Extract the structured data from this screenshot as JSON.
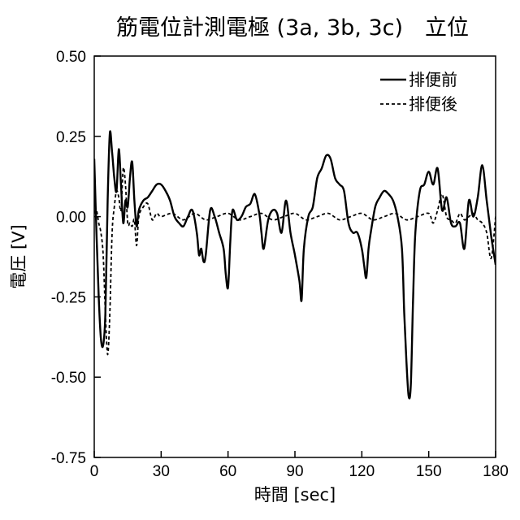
{
  "chart_data": {
    "type": "line",
    "title": "筋電位計測電極 (3a, 3b, 3c)　立位",
    "xlabel": "時間 [sec]",
    "ylabel": "電圧 [V]",
    "xlim": [
      0,
      180
    ],
    "ylim": [
      -0.75,
      0.5
    ],
    "xticks": [
      0,
      30,
      60,
      90,
      120,
      150,
      180
    ],
    "xtick_labels": [
      "0",
      "30",
      "60",
      "90",
      "120",
      "150",
      "180"
    ],
    "yticks": [
      0.5,
      0.25,
      0,
      -0.25,
      -0.5,
      -0.75
    ],
    "ytick_labels": [
      "0.50",
      "0.25",
      "0.00",
      "-0.25",
      "-0.50",
      "-0.75"
    ],
    "grid": false,
    "legend_position": "top-right",
    "series": [
      {
        "name": "排便前",
        "style": "solid",
        "color": "#000000",
        "x": [
          0,
          1,
          2,
          3,
          4,
          5,
          6,
          7,
          8,
          9,
          10,
          11,
          12,
          13,
          14,
          15,
          16,
          17,
          18,
          19,
          20,
          22,
          24,
          26,
          28,
          30,
          32,
          34,
          36,
          38,
          40,
          42,
          44,
          46,
          47,
          48,
          49,
          50,
          52,
          54,
          56,
          58,
          59,
          60,
          61,
          62,
          64,
          66,
          68,
          70,
          72,
          74,
          75,
          76,
          78,
          80,
          82,
          84,
          86,
          88,
          90,
          92,
          93,
          94,
          96,
          98,
          100,
          102,
          104,
          106,
          108,
          110,
          112,
          114,
          116,
          118,
          120,
          121,
          122,
          123,
          124,
          126,
          128,
          130,
          132,
          134,
          136,
          138,
          139,
          140,
          141,
          142,
          143,
          144,
          146,
          148,
          150,
          152,
          154,
          156,
          158,
          160,
          162,
          164,
          166,
          168,
          170,
          172,
          174,
          176,
          178,
          180
        ],
        "y": [
          0.18,
          -0.05,
          -0.25,
          -0.38,
          -0.4,
          -0.3,
          0.05,
          0.26,
          0.2,
          0.12,
          0.08,
          0.21,
          0.1,
          -0.02,
          0.05,
          0.03,
          0.12,
          0.17,
          0.05,
          -0.03,
          0.02,
          0.05,
          0.06,
          0.08,
          0.1,
          0.1,
          0.08,
          0.05,
          0.0,
          -0.02,
          -0.03,
          0.0,
          0.02,
          -0.05,
          -0.12,
          -0.1,
          -0.14,
          -0.12,
          0.02,
          0.0,
          -0.05,
          -0.1,
          -0.18,
          -0.22,
          -0.08,
          0.02,
          -0.01,
          0.0,
          0.03,
          0.04,
          0.07,
          0.01,
          -0.05,
          -0.1,
          -0.01,
          0.02,
          0.01,
          -0.05,
          0.05,
          -0.05,
          -0.12,
          -0.2,
          -0.26,
          -0.1,
          0.0,
          0.03,
          0.12,
          0.15,
          0.19,
          0.18,
          0.12,
          0.1,
          0.08,
          -0.02,
          -0.05,
          -0.05,
          -0.1,
          -0.15,
          -0.19,
          -0.1,
          -0.05,
          0.03,
          0.06,
          0.08,
          0.07,
          0.05,
          0.0,
          -0.1,
          -0.3,
          -0.45,
          -0.56,
          -0.52,
          -0.25,
          -0.05,
          0.08,
          0.1,
          0.14,
          0.1,
          0.15,
          0.02,
          0.06,
          -0.02,
          -0.03,
          -0.02,
          -0.1,
          0.05,
          0.0,
          0.06,
          0.16,
          0.05,
          -0.06,
          -0.15
        ]
      },
      {
        "name": "排便後",
        "style": "dashed",
        "color": "#000000",
        "x": [
          0,
          1,
          2,
          3,
          4,
          5,
          6,
          7,
          8,
          9,
          10,
          11,
          12,
          13,
          14,
          15,
          16,
          17,
          18,
          19,
          20,
          22,
          24,
          26,
          28,
          30,
          35,
          40,
          45,
          50,
          55,
          60,
          65,
          70,
          75,
          80,
          85,
          90,
          95,
          100,
          105,
          110,
          115,
          120,
          125,
          130,
          135,
          140,
          145,
          150,
          152,
          154,
          156,
          158,
          160,
          162,
          164,
          166,
          168,
          170,
          172,
          174,
          176,
          178,
          180
        ],
        "y": [
          0.01,
          0.02,
          -0.02,
          -0.05,
          -0.12,
          -0.3,
          -0.43,
          -0.3,
          -0.05,
          0.03,
          0.08,
          0.06,
          0.02,
          0.15,
          0.1,
          -0.02,
          -0.02,
          -0.03,
          -0.01,
          -0.09,
          0.0,
          0.03,
          0.04,
          -0.01,
          0.01,
          0.0,
          0.01,
          -0.01,
          0.01,
          -0.01,
          0.0,
          0.01,
          -0.01,
          0.0,
          0.01,
          -0.01,
          0.0,
          0.01,
          -0.01,
          0.0,
          0.01,
          -0.01,
          0.0,
          0.01,
          -0.01,
          0.0,
          0.01,
          -0.01,
          0.0,
          0.01,
          -0.02,
          0.02,
          0.07,
          0.0,
          -0.01,
          -0.02,
          0.01,
          -0.01,
          0.0,
          0.01,
          -0.01,
          -0.02,
          -0.05,
          -0.13,
          0.0
        ]
      }
    ]
  }
}
